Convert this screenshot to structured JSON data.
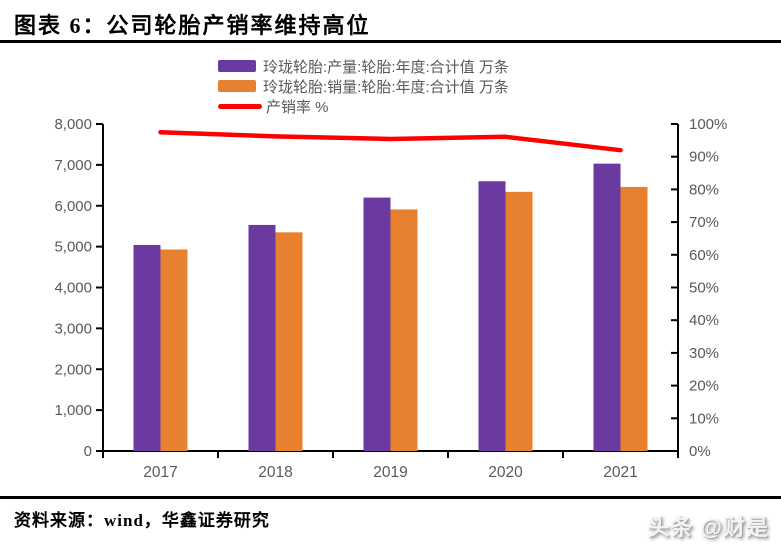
{
  "header": {
    "title": "图表 6：公司轮胎产销率维持高位"
  },
  "footer": {
    "source": "资料来源：wind，华鑫证券研究",
    "watermark": "头条 @财是"
  },
  "colors": {
    "production": "#6A3AA0",
    "sales": "#E8812F",
    "rate": "#FF0000",
    "axis": "#000000",
    "tick_text": "#595959"
  },
  "chart_data": {
    "type": "bar",
    "title": "图表 6：公司轮胎产销率维持高位",
    "categories": [
      "2017",
      "2018",
      "2019",
      "2020",
      "2021"
    ],
    "series": [
      {
        "name": "玲珑轮胎:产量:轮胎:年度:合计值 万条",
        "type": "bar",
        "axis": "left",
        "color_key": "production",
        "values": [
          5040,
          5530,
          6200,
          6600,
          7030
        ]
      },
      {
        "name": "玲珑轮胎:销量:轮胎:年度:合计值 万条",
        "type": "bar",
        "axis": "left",
        "color_key": "sales",
        "values": [
          4930,
          5350,
          5910,
          6340,
          6460
        ]
      },
      {
        "name": "产销率 %",
        "type": "line",
        "axis": "right",
        "color_key": "rate",
        "values": [
          97.5,
          96.2,
          95.4,
          96.1,
          92.0
        ]
      }
    ],
    "left_axis": {
      "min": 0,
      "max": 8000,
      "tick_labels": [
        "0",
        "1,000",
        "2,000",
        "3,000",
        "4,000",
        "5,000",
        "6,000",
        "7,000",
        "8,000"
      ]
    },
    "right_axis": {
      "min": 0,
      "max": 100,
      "tick_labels": [
        "0%",
        "10%",
        "20%",
        "30%",
        "40%",
        "50%",
        "60%",
        "70%",
        "80%",
        "90%",
        "100%"
      ]
    },
    "xlabel": "",
    "ylabel": "",
    "legend_position": "top-center",
    "grid": false
  }
}
